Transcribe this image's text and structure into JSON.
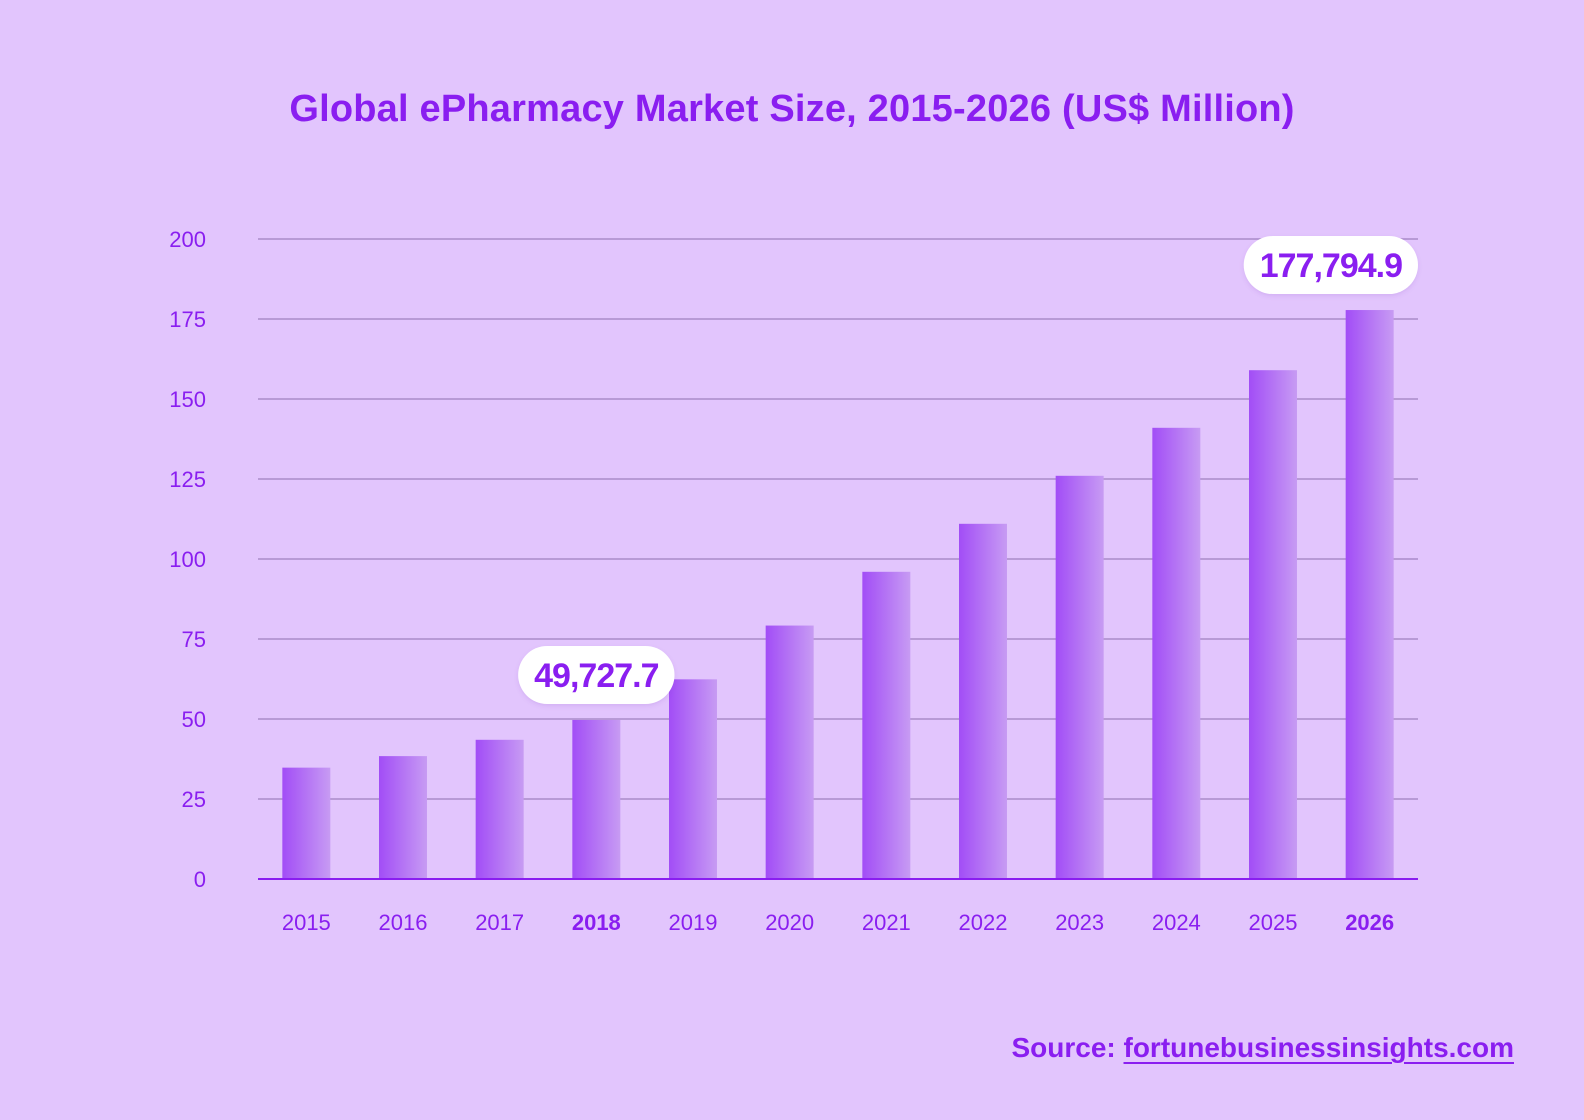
{
  "chart_data": {
    "type": "bar",
    "title": "Global ePharmacy Market Size, 2015-2026 (US$ Million)",
    "categories": [
      "2015",
      "2016",
      "2017",
      "2018",
      "2019",
      "2020",
      "2021",
      "2022",
      "2023",
      "2024",
      "2025",
      "2026"
    ],
    "values": [
      34.8,
      38.4,
      43.5,
      49.7,
      62.4,
      79.2,
      96.0,
      111.0,
      126.0,
      141.0,
      159.0,
      177.8
    ],
    "ylim": [
      0,
      200
    ],
    "yticks": [
      "0",
      "25",
      "50",
      "75",
      "100",
      "125",
      "150",
      "175",
      "200"
    ],
    "grid": true,
    "highlighted_categories": [
      "2018",
      "2026"
    ],
    "callouts": [
      {
        "category": "2018",
        "label": "49,727.7"
      },
      {
        "category": "2026",
        "label": "177,794.9"
      }
    ],
    "colors": {
      "background": "#e2c5fd",
      "accent": "#8a1ef0",
      "bar_top": "#a855f7",
      "bar_bottom": "#c49af5",
      "gridline": "#a98bc9",
      "callout_bg": "#ffffff"
    }
  },
  "source": {
    "prefix": "Source:",
    "link_text": "fortunebusinessinsights.com"
  }
}
